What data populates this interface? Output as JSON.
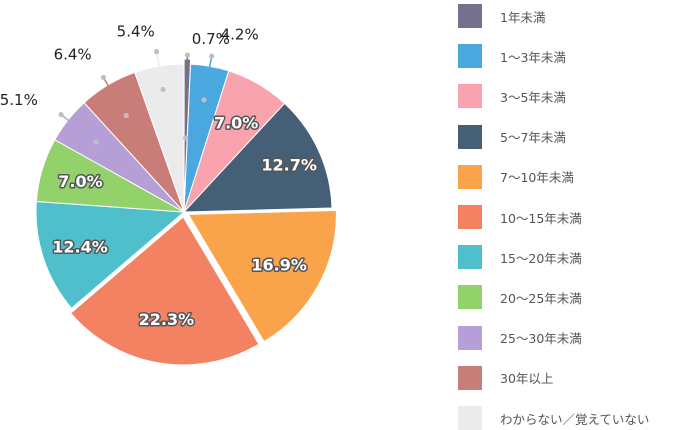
{
  "chart_data": {
    "type": "pie",
    "categories": [
      "1年未満",
      "1～3年未満",
      "3～5年未満",
      "5～7年未満",
      "7～10年未満",
      "10～15年未満",
      "15～20年未満",
      "20～25年未満",
      "25～30年未満",
      "30年以上",
      "わからない／覚えていない"
    ],
    "values": [
      0.7,
      4.2,
      7.0,
      12.7,
      16.9,
      22.3,
      12.4,
      7.0,
      5.1,
      6.4,
      5.4
    ],
    "value_labels": [
      "0.7%",
      "4.2%",
      "7.0%",
      "12.7%",
      "16.9%",
      "22.3%",
      "12.4%",
      "7.0%",
      "5.1%",
      "6.4%",
      "5.4%"
    ],
    "colors": [
      "#76708a",
      "#4aa8de",
      "#f9a3ae",
      "#455f77",
      "#f9a34a",
      "#f38263",
      "#4fc0cb",
      "#93d16a",
      "#b69fd6",
      "#c97d78",
      "#ebebeb"
    ],
    "label_placement": [
      "outside",
      "outside",
      "inside",
      "inside",
      "inside",
      "inside",
      "inside",
      "inside",
      "outside",
      "outside",
      "outside"
    ],
    "exploded": [
      "1年未満",
      "7～10年未満",
      "10～15年未満"
    ],
    "legend_position": "right"
  }
}
